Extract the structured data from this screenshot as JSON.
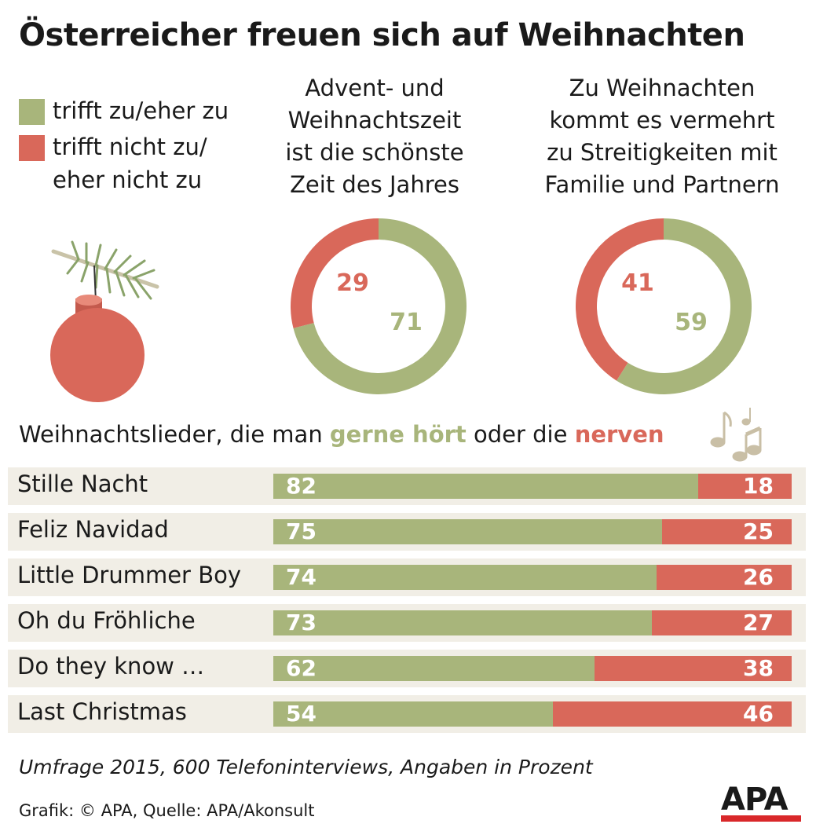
{
  "title": "Österreicher freuen sich auf Weihnachten",
  "colors": {
    "green": "#a8b57b",
    "red": "#d9685a",
    "bar_bg": "#f1eee6"
  },
  "legend": [
    {
      "label": "trifft zu/eher zu",
      "color": "#a8b57b"
    },
    {
      "label": "trifft nicht zu/\neher nicht zu",
      "color": "#d9685a"
    }
  ],
  "songs_heading": {
    "pre": "Weihnachtslieder, die man ",
    "green": "gerne hört",
    "mid": " oder die ",
    "red": "nerven"
  },
  "footnote": "Umfrage 2015, 600 Telefoninterviews, Angaben in Prozent",
  "credit": "Grafik: © APA, Quelle: APA/Akonsult",
  "logo": "APA",
  "icons": [
    "christmas-ornament-icon",
    "music-notes-icon"
  ],
  "chart_data": [
    {
      "type": "pie",
      "title": "Advent- und\nWeihnachtszeit\nist die schönste\nZeit des Jahres",
      "slices": [
        {
          "name": "trifft zu/eher zu",
          "value": 71
        },
        {
          "name": "trifft nicht zu/eher nicht zu",
          "value": 29
        }
      ]
    },
    {
      "type": "pie",
      "title": "Zu Weihnachten\nkommt es vermehrt\nzu Streitigkeiten mit\nFamilie und Partnern",
      "slices": [
        {
          "name": "trifft zu/eher zu",
          "value": 59
        },
        {
          "name": "trifft nicht zu/eher nicht zu",
          "value": 41
        }
      ]
    },
    {
      "type": "bar",
      "categories": [
        "Stille Nacht",
        "Feliz Navidad",
        "Little Drummer Boy",
        "Oh du Fröhliche",
        "Do they know …",
        "Last Christmas"
      ],
      "series": [
        {
          "name": "gerne hört",
          "values": [
            82,
            75,
            74,
            73,
            62,
            54
          ]
        },
        {
          "name": "nerven",
          "values": [
            18,
            25,
            26,
            27,
            38,
            46
          ]
        }
      ]
    }
  ]
}
